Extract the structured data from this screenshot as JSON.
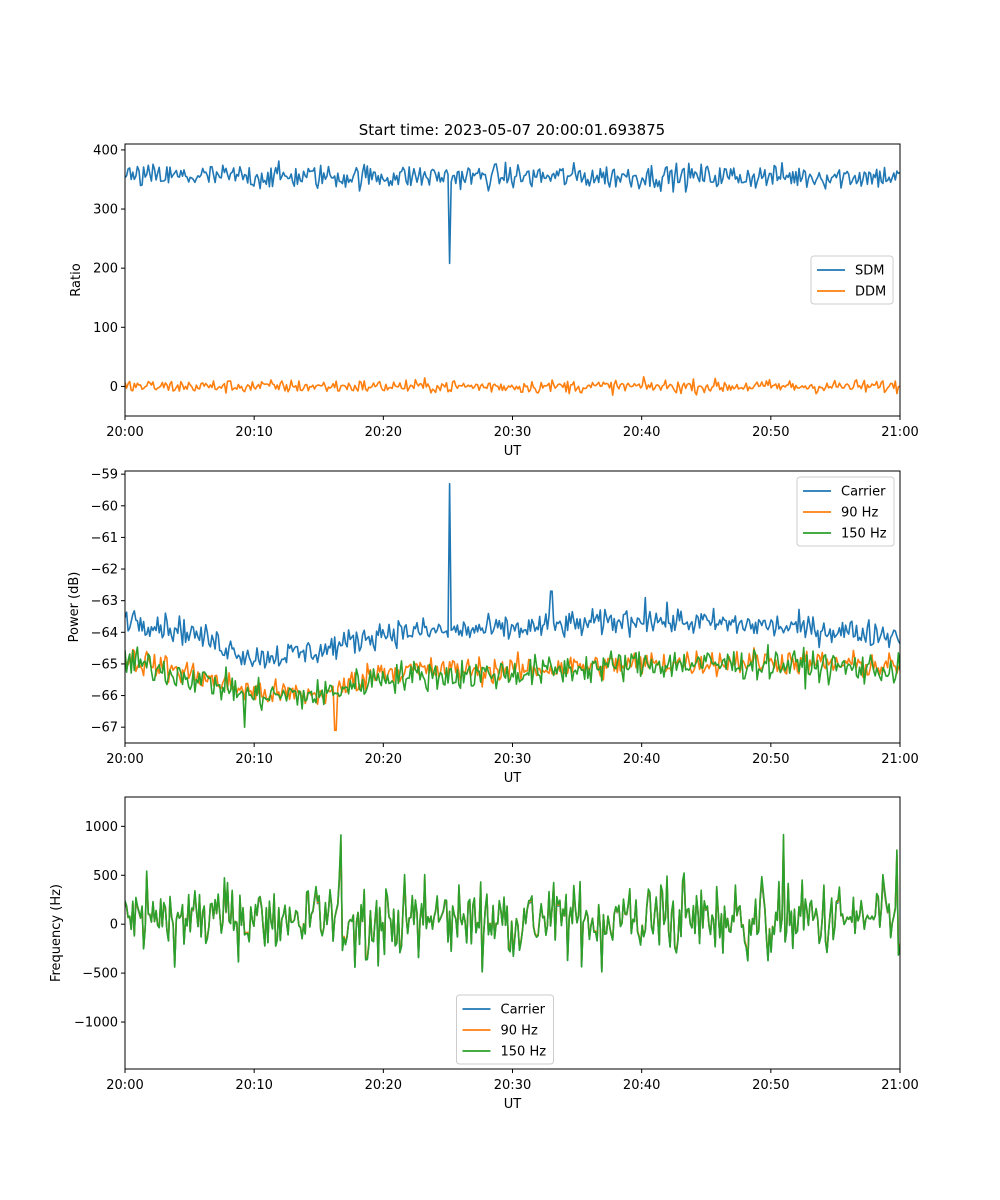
{
  "figure": {
    "title": "Start time: 2023-05-07 20:00:01.693875",
    "colors": {
      "blue": "#1f77b4",
      "orange": "#ff7f0e",
      "green": "#2ca02c"
    }
  },
  "chart_data": [
    {
      "type": "line",
      "xlabel": "UT",
      "ylabel": "Ratio",
      "x_ticks": [
        "20:00",
        "20:10",
        "20:20",
        "20:30",
        "20:40",
        "20:50",
        "21:00"
      ],
      "x_range_minutes": [
        0,
        60
      ],
      "ylim": [
        -50,
        410
      ],
      "y_ticks": [
        0,
        100,
        200,
        300,
        400
      ],
      "y_tick_labels": [
        "0",
        "100",
        "200",
        "300",
        "400"
      ],
      "legend_position": "center-right",
      "series": [
        {
          "name": "SDM",
          "color": "#1f77b4",
          "baseline": 355,
          "noise": 15,
          "spikes": [
            {
              "x": 25.1,
              "y": 208
            }
          ]
        },
        {
          "name": "DDM",
          "color": "#ff7f0e",
          "baseline": 0,
          "noise": 8,
          "spikes": []
        }
      ]
    },
    {
      "type": "line",
      "xlabel": "UT",
      "ylabel": "Power (dB)",
      "x_ticks": [
        "20:00",
        "20:10",
        "20:20",
        "20:30",
        "20:40",
        "20:50",
        "21:00"
      ],
      "x_range_minutes": [
        0,
        60
      ],
      "ylim": [
        -67.5,
        -58.9
      ],
      "y_ticks": [
        -67,
        -66,
        -65,
        -64,
        -63,
        -62,
        -61,
        -60,
        -59
      ],
      "y_tick_labels": [
        "−67",
        "−66",
        "−65",
        "−64",
        "−63",
        "−62",
        "−61",
        "−60",
        "−59"
      ],
      "legend_position": "top-right",
      "series": [
        {
          "name": "Carrier",
          "color": "#1f77b4",
          "profile": [
            [
              0,
              -63.5
            ],
            [
              5,
              -64.0
            ],
            [
              10,
              -64.8
            ],
            [
              15,
              -64.6
            ],
            [
              20,
              -64.0
            ],
            [
              30,
              -63.9
            ],
            [
              40,
              -63.6
            ],
            [
              50,
              -63.8
            ],
            [
              60,
              -64.1
            ]
          ],
          "noise": 0.3,
          "spikes": [
            {
              "x": 25.1,
              "y": -59.3
            },
            {
              "x": 33.0,
              "y": -62.7
            },
            {
              "x": 40.3,
              "y": -62.9
            }
          ]
        },
        {
          "name": "90 Hz",
          "color": "#ff7f0e",
          "profile": [
            [
              0,
              -64.8
            ],
            [
              5,
              -65.3
            ],
            [
              10,
              -65.9
            ],
            [
              15,
              -66.0
            ],
            [
              20,
              -65.2
            ],
            [
              30,
              -65.2
            ],
            [
              40,
              -65.0
            ],
            [
              50,
              -64.9
            ],
            [
              60,
              -65.1
            ]
          ],
          "noise": 0.3,
          "spikes": [
            {
              "x": 16.3,
              "y": -67.1
            }
          ]
        },
        {
          "name": "150 Hz",
          "color": "#2ca02c",
          "profile": [
            [
              0,
              -64.9
            ],
            [
              5,
              -65.4
            ],
            [
              10,
              -66.0
            ],
            [
              15,
              -66.0
            ],
            [
              20,
              -65.4
            ],
            [
              30,
              -65.3
            ],
            [
              40,
              -65.0
            ],
            [
              50,
              -65.0
            ],
            [
              60,
              -65.2
            ]
          ],
          "noise": 0.35,
          "spikes": [
            {
              "x": 9.3,
              "y": -67.0
            }
          ]
        }
      ]
    },
    {
      "type": "line",
      "xlabel": "UT",
      "ylabel": "Frequency (Hz)",
      "x_ticks": [
        "20:00",
        "20:10",
        "20:20",
        "20:30",
        "20:40",
        "20:50",
        "21:00"
      ],
      "x_range_minutes": [
        0,
        60
      ],
      "ylim": [
        -1480,
        1300
      ],
      "y_ticks": [
        -1000,
        -500,
        0,
        500,
        1000
      ],
      "y_tick_labels": [
        "−1000",
        "−500",
        "0",
        "500",
        "1000"
      ],
      "legend_position": "bottom-center",
      "series": [
        {
          "name": "Carrier",
          "color": "#1f77b4",
          "center": 50,
          "amplitude": 450,
          "offset": -30
        },
        {
          "name": "90 Hz",
          "color": "#ff7f0e",
          "center": 50,
          "amplitude": 450,
          "offset": 0
        },
        {
          "name": "150 Hz",
          "color": "#2ca02c",
          "center": 50,
          "amplitude": 460,
          "offset": 25
        }
      ]
    }
  ]
}
